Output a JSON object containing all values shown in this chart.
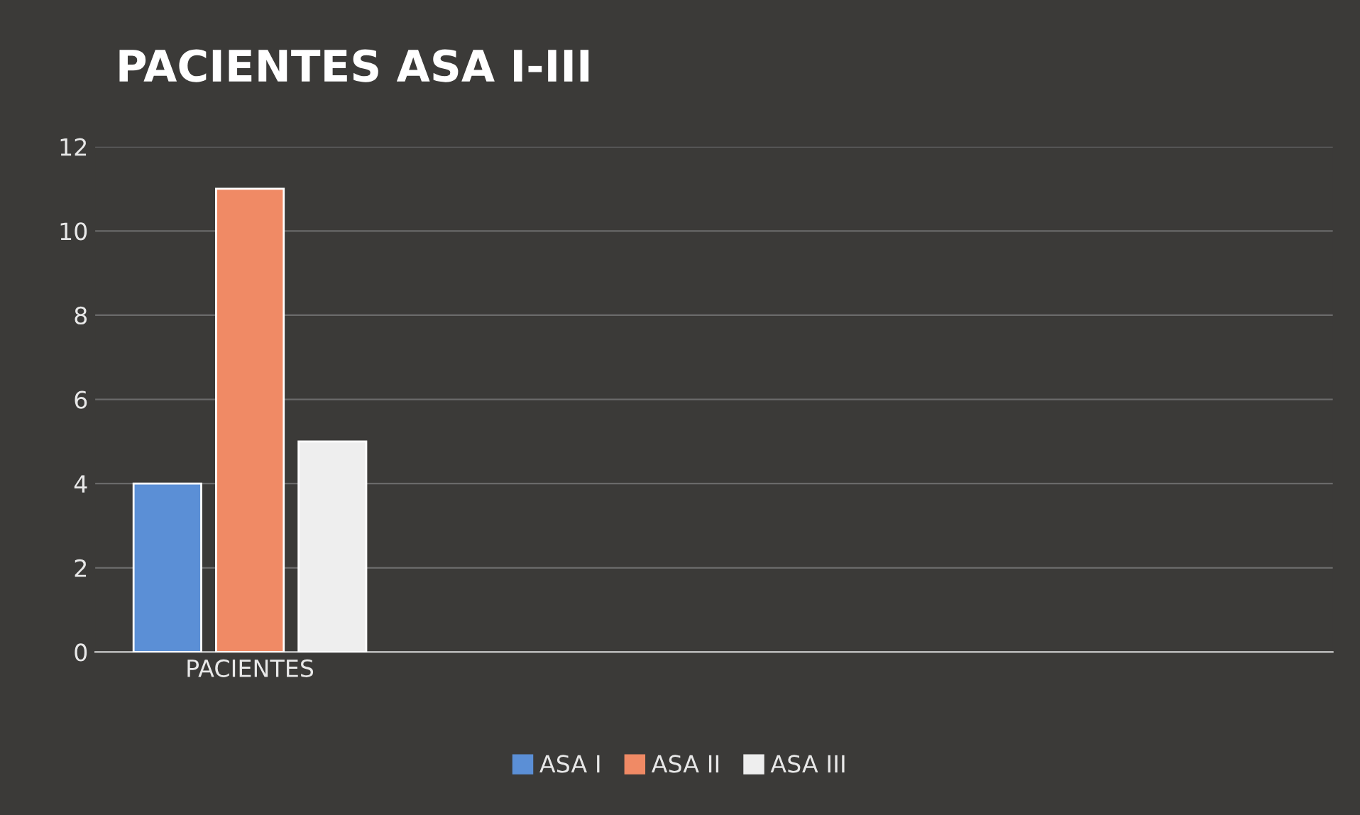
{
  "chart_data": {
    "type": "bar",
    "title": "PACIENTES ASA I-III",
    "categories": [
      "PACIENTES",
      null,
      null,
      null
    ],
    "series": [
      {
        "name": "ASA I",
        "color": "#5b8fd6",
        "values": [
          4,
          null,
          null,
          null
        ]
      },
      {
        "name": "ASA II",
        "color": "#f08a65",
        "values": [
          11,
          null,
          null,
          null
        ]
      },
      {
        "name": "ASA III",
        "color": "#eeeeee",
        "values": [
          5,
          null,
          null,
          null
        ]
      }
    ],
    "ylim": [
      0,
      12
    ],
    "yticks": [
      0,
      2,
      4,
      6,
      8,
      10,
      12
    ],
    "grid": "y",
    "legend": "bottom"
  }
}
